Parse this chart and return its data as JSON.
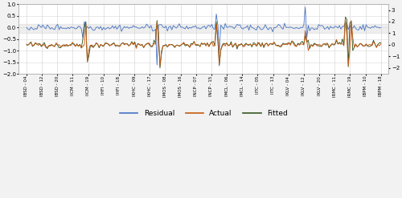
{
  "x_labels": [
    "IBSD - 04",
    "IBSD - 12",
    "IBSD - 20",
    "IICM - 11",
    "IICM - 19",
    "IHFI - 10",
    "IHFI - 18",
    "IKHC - 09",
    "IKHC - 17",
    "IMOS - 08",
    "IMOS - 16",
    "INCP - 07",
    "INCP - 15",
    "IMCL - 06",
    "IMCL - 14",
    "IITC - 05",
    "IITC - 13",
    "IKLV - 04",
    "IKLV - 12",
    "IKLV - 20",
    "IRMC - 11",
    "IRMC - 19",
    "IBPM - 10",
    "IBPM - 18"
  ],
  "n_ticks": 24,
  "n_points": 240,
  "residual_color": "#4472c4",
  "actual_color": "#c55a11",
  "fitted_color": "#375623",
  "band_color": "#d0d0d0",
  "band_alpha": 0.35,
  "band_lower": -0.25,
  "band_upper": 0.15,
  "left_ylim": [
    -2.0,
    1.0
  ],
  "right_ylim": [
    -2.5,
    3.5
  ],
  "left_yticks": [
    1.0,
    0.5,
    0.0,
    -0.5,
    -1.0,
    -1.5,
    -2.0
  ],
  "right_yticks": [
    3,
    2,
    1,
    0,
    -1,
    -2
  ],
  "bg_color": "#f2f2f2",
  "plot_bg_color": "#ffffff",
  "grid_color": "#d9d9d9",
  "legend_labels": [
    "Residual",
    "Actual",
    "Fitted"
  ]
}
